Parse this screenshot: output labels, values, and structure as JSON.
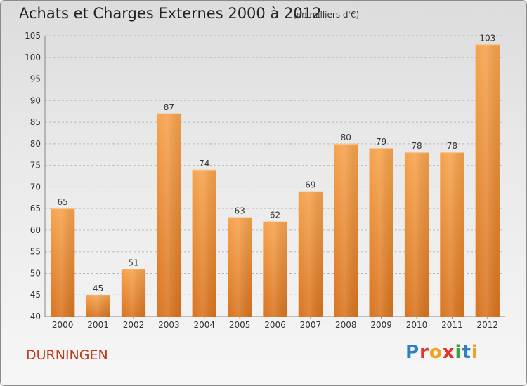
{
  "header": {
    "title": "Achats et Charges Externes 2000 à 2012",
    "subtitle": "(en milliers d'€)"
  },
  "footer": {
    "commune": "DURNINGEN",
    "logo_text": "Proxiti",
    "logo_letters": [
      {
        "ch": "P",
        "color": "#2f7fc7"
      },
      {
        "ch": "r",
        "color": "#e0332b"
      },
      {
        "ch": "o",
        "color": "#f0a21b"
      },
      {
        "ch": "x",
        "color": "#e0332b"
      },
      {
        "ch": "i",
        "color": "#3aa535"
      },
      {
        "ch": "t",
        "color": "#2f7fc7"
      },
      {
        "ch": "i",
        "color": "#f0a21b"
      }
    ]
  },
  "colors": {
    "bar_top": "#f6a34d",
    "bar_bottom": "#d9741f",
    "grid": "#b8b8b8",
    "text": "#333333"
  },
  "chart_data": {
    "type": "bar",
    "categories": [
      "2000",
      "2001",
      "2002",
      "2003",
      "2004",
      "2005",
      "2006",
      "2007",
      "2008",
      "2009",
      "2010",
      "2011",
      "2012"
    ],
    "values": [
      65,
      45,
      51,
      87,
      74,
      63,
      62,
      69,
      80,
      79,
      78,
      78,
      103
    ],
    "data_labels": [
      "65",
      "45",
      "51",
      "87",
      "74",
      "63",
      "62",
      "69",
      "80",
      "79",
      "78",
      "78",
      "103"
    ],
    "ylim": [
      40,
      105
    ],
    "yticks": [
      40,
      45,
      50,
      55,
      60,
      65,
      70,
      75,
      80,
      85,
      90,
      95,
      100,
      105
    ],
    "grid": true,
    "legend": "none"
  }
}
